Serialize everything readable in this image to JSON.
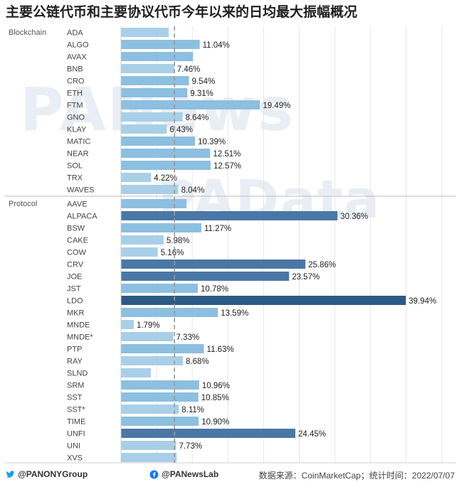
{
  "title": "主要公链代币和主要协议代币今年以来的日均最大振幅概况",
  "watermarks": [
    "PANews",
    "PAData"
  ],
  "footer": {
    "twitter_handle": "@PANONYGroup",
    "facebook_handle": "@PANewsLab",
    "source": "数据来源：CoinMarketCap；统计时间：2022/07/07"
  },
  "colors": {
    "light": "#a9cfe8",
    "mid": "#8cbfe0",
    "dark": "#4a77a6",
    "darkest": "#2c5a86",
    "reference_line": "#999999"
  },
  "chart_data": {
    "type": "bar",
    "orientation": "horizontal",
    "xlim": [
      0,
      47
    ],
    "reference_line": 7.5,
    "x_ticks": [
      0,
      5,
      10,
      15,
      20,
      25,
      30,
      35,
      40,
      45
    ],
    "groups": [
      {
        "name": "Blockchain",
        "rows": [
          {
            "label": "ADA",
            "value": 6.7,
            "value_label": ""
          },
          {
            "label": "ALGO",
            "value": 11.04,
            "value_label": "11.04%"
          },
          {
            "label": "AVAX",
            "value": 10.1,
            "value_label": ""
          },
          {
            "label": "BNB",
            "value": 7.46,
            "value_label": "7.46%"
          },
          {
            "label": "CRO",
            "value": 9.54,
            "value_label": "9.54%"
          },
          {
            "label": "ETH",
            "value": 9.31,
            "value_label": "9.31%"
          },
          {
            "label": "FTM",
            "value": 19.49,
            "value_label": "19.49%"
          },
          {
            "label": "GNO",
            "value": 8.64,
            "value_label": "8.64%"
          },
          {
            "label": "KLAY",
            "value": 6.43,
            "value_label": "6.43%"
          },
          {
            "label": "MATIC",
            "value": 10.39,
            "value_label": "10.39%"
          },
          {
            "label": "NEAR",
            "value": 12.51,
            "value_label": "12.51%"
          },
          {
            "label": "SOL",
            "value": 12.57,
            "value_label": "12.57%"
          },
          {
            "label": "TRX",
            "value": 4.22,
            "value_label": "4.22%"
          },
          {
            "label": "WAVES",
            "value": 8.04,
            "value_label": "8.04%"
          }
        ]
      },
      {
        "name": "Protocol",
        "rows": [
          {
            "label": "AAVE",
            "value": 9.2,
            "value_label": ""
          },
          {
            "label": "ALPACA",
            "value": 30.36,
            "value_label": "30.36%"
          },
          {
            "label": "BSW",
            "value": 11.27,
            "value_label": "11.27%"
          },
          {
            "label": "CAKE",
            "value": 5.98,
            "value_label": "5.98%"
          },
          {
            "label": "COW",
            "value": 5.16,
            "value_label": "5.16%"
          },
          {
            "label": "CRV",
            "value": 25.86,
            "value_label": "25.86%"
          },
          {
            "label": "JOE",
            "value": 23.57,
            "value_label": "23.57%"
          },
          {
            "label": "JST",
            "value": 10.78,
            "value_label": "10.78%"
          },
          {
            "label": "LDO",
            "value": 39.94,
            "value_label": "39.94%"
          },
          {
            "label": "MKR",
            "value": 13.59,
            "value_label": "13.59%"
          },
          {
            "label": "MNDE",
            "value": 1.79,
            "value_label": "1.79%"
          },
          {
            "label": "MNDE*",
            "value": 7.33,
            "value_label": "7.33%"
          },
          {
            "label": "PTP",
            "value": 11.63,
            "value_label": "11.63%"
          },
          {
            "label": "RAY",
            "value": 8.68,
            "value_label": "8.68%"
          },
          {
            "label": "SLND",
            "value": 4.2,
            "value_label": ""
          },
          {
            "label": "SRM",
            "value": 10.96,
            "value_label": "10.96%"
          },
          {
            "label": "SST",
            "value": 10.85,
            "value_label": "10.85%"
          },
          {
            "label": "SST*",
            "value": 8.11,
            "value_label": "8.11%"
          },
          {
            "label": "TIME",
            "value": 10.9,
            "value_label": "10.90%"
          },
          {
            "label": "UNFI",
            "value": 24.45,
            "value_label": "24.45%"
          },
          {
            "label": "UNI",
            "value": 7.73,
            "value_label": "7.73%"
          },
          {
            "label": "XVS",
            "value": 7.8,
            "value_label": ""
          }
        ]
      }
    ]
  }
}
